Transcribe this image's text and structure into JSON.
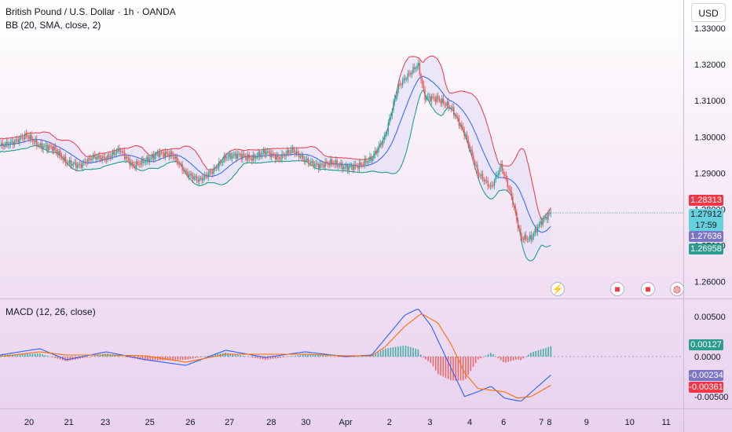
{
  "header": {
    "symbol_title": "British Pound / U.S. Dollar · 1h · OANDA",
    "indicator_bb": "BB (20, SMA, close, 2)",
    "indicator_macd": "MACD (12, 26, close)",
    "currency_button": "USD"
  },
  "price_tags": {
    "upper_band": "1.28313",
    "last_price": "1.27912",
    "countdown": "17:59",
    "basis": "1.27636",
    "lower_band": "1.26958",
    "macd_hist": "0.00127",
    "macd_line": "-0.00234",
    "signal_line": "-0.00361"
  },
  "colors": {
    "up": "#26a69a",
    "down": "#ef5350",
    "bb_upper": "#f23645",
    "bb_basis": "#2962ff",
    "bb_lower": "#089981",
    "band_fill": "#e7e2f7",
    "macd_line": "#2962ff",
    "signal_line": "#ff6d00",
    "tag_upper": "#f23645",
    "tag_last": "#66d1de",
    "tag_basis": "#7b75c6",
    "tag_lower": "#2a9d8f"
  },
  "icons": [
    "lightning-icon",
    "us-flag-event-icon",
    "us-flag-event-icon",
    "globe-event-icon"
  ],
  "chart_data": [
    {
      "type": "candlestick",
      "title": "British Pound / U.S. Dollar · 1h · OANDA",
      "indicator": "BB (20, SMA, close, 2)",
      "y_ticks": [
        "1.33000",
        "1.32000",
        "1.31000",
        "1.30000",
        "1.29000",
        "1.28000",
        "1.27000",
        "1.26000"
      ],
      "ylim": [
        1.2575,
        1.3335
      ],
      "x_ticks": [
        "20",
        "21",
        "23",
        "25",
        "26",
        "27",
        "28",
        "30",
        "Apr",
        "2",
        "3",
        "4",
        "6",
        "7",
        "8",
        "9",
        "10",
        "11"
      ],
      "price_path": [
        {
          "t": 0.0,
          "close": 1.2975
        },
        {
          "t": 0.02,
          "close": 1.2985
        },
        {
          "t": 0.04,
          "close": 1.3005
        },
        {
          "t": 0.06,
          "close": 1.2975
        },
        {
          "t": 0.08,
          "close": 1.297
        },
        {
          "t": 0.1,
          "close": 1.293
        },
        {
          "t": 0.12,
          "close": 1.292
        },
        {
          "t": 0.14,
          "close": 1.2945
        },
        {
          "t": 0.16,
          "close": 1.294
        },
        {
          "t": 0.18,
          "close": 1.2965
        },
        {
          "t": 0.2,
          "close": 1.292
        },
        {
          "t": 0.22,
          "close": 1.2935
        },
        {
          "t": 0.24,
          "close": 1.2955
        },
        {
          "t": 0.26,
          "close": 1.295
        },
        {
          "t": 0.28,
          "close": 1.29
        },
        {
          "t": 0.3,
          "close": 1.288
        },
        {
          "t": 0.32,
          "close": 1.2905
        },
        {
          "t": 0.34,
          "close": 1.2945
        },
        {
          "t": 0.36,
          "close": 1.295
        },
        {
          "t": 0.38,
          "close": 1.294
        },
        {
          "t": 0.4,
          "close": 1.296
        },
        {
          "t": 0.42,
          "close": 1.294
        },
        {
          "t": 0.44,
          "close": 1.2965
        },
        {
          "t": 0.46,
          "close": 1.2935
        },
        {
          "t": 0.48,
          "close": 1.292
        },
        {
          "t": 0.5,
          "close": 1.293
        },
        {
          "t": 0.52,
          "close": 1.2915
        },
        {
          "t": 0.54,
          "close": 1.292
        },
        {
          "t": 0.56,
          "close": 1.294
        },
        {
          "t": 0.58,
          "close": 1.3
        },
        {
          "t": 0.6,
          "close": 1.314
        },
        {
          "t": 0.62,
          "close": 1.318
        },
        {
          "t": 0.63,
          "close": 1.32
        },
        {
          "t": 0.64,
          "close": 1.311
        },
        {
          "t": 0.66,
          "close": 1.3105
        },
        {
          "t": 0.68,
          "close": 1.308
        },
        {
          "t": 0.7,
          "close": 1.301
        },
        {
          "t": 0.72,
          "close": 1.29
        },
        {
          "t": 0.74,
          "close": 1.286
        },
        {
          "t": 0.755,
          "close": 1.292
        },
        {
          "t": 0.77,
          "close": 1.284
        },
        {
          "t": 0.785,
          "close": 1.272
        },
        {
          "t": 0.8,
          "close": 1.272
        },
        {
          "t": 0.815,
          "close": 1.2765
        },
        {
          "t": 0.83,
          "close": 1.2791
        }
      ]
    },
    {
      "type": "line",
      "title": "MACD (12, 26, close)",
      "y_ticks": [
        "0.00500",
        "0.0000",
        "-0.00500"
      ],
      "ylim": [
        -0.006,
        0.0062
      ],
      "series": [
        {
          "points": [
            {
              "t": 0.0,
              "v": 0.0002
            },
            {
              "t": 0.06,
              "v": 0.001
            },
            {
              "t": 0.1,
              "v": -0.0004
            },
            {
              "t": 0.16,
              "v": 0.0006
            },
            {
              "t": 0.22,
              "v": -0.0004
            },
            {
              "t": 0.28,
              "v": -0.0011
            },
            {
              "t": 0.34,
              "v": 0.0008
            },
            {
              "t": 0.4,
              "v": -0.0001
            },
            {
              "t": 0.46,
              "v": 0.0006
            },
            {
              "t": 0.52,
              "v": 0.0
            },
            {
              "t": 0.56,
              "v": 0.0002
            },
            {
              "t": 0.58,
              "v": 0.0022
            },
            {
              "t": 0.61,
              "v": 0.0052
            },
            {
              "t": 0.63,
              "v": 0.006
            },
            {
              "t": 0.65,
              "v": 0.0038
            },
            {
              "t": 0.66,
              "v": 0.002
            },
            {
              "t": 0.68,
              "v": -0.0015
            },
            {
              "t": 0.7,
              "v": -0.005
            },
            {
              "t": 0.72,
              "v": -0.0044
            },
            {
              "t": 0.74,
              "v": -0.0037
            },
            {
              "t": 0.76,
              "v": -0.0052
            },
            {
              "t": 0.785,
              "v": -0.0056
            },
            {
              "t": 0.8,
              "v": -0.0045
            },
            {
              "t": 0.83,
              "v": -0.0023
            }
          ]
        },
        {
          "points": [
            {
              "t": 0.0,
              "v": 0.0
            },
            {
              "t": 0.06,
              "v": 0.0006
            },
            {
              "t": 0.1,
              "v": 0.0002
            },
            {
              "t": 0.16,
              "v": 0.0002
            },
            {
              "t": 0.22,
              "v": 0.0001
            },
            {
              "t": 0.28,
              "v": -0.0007
            },
            {
              "t": 0.34,
              "v": 0.0003
            },
            {
              "t": 0.4,
              "v": 0.0003
            },
            {
              "t": 0.46,
              "v": 0.0003
            },
            {
              "t": 0.52,
              "v": 0.0001
            },
            {
              "t": 0.56,
              "v": 0.0001
            },
            {
              "t": 0.58,
              "v": 0.0012
            },
            {
              "t": 0.61,
              "v": 0.0038
            },
            {
              "t": 0.635,
              "v": 0.0054
            },
            {
              "t": 0.66,
              "v": 0.0042
            },
            {
              "t": 0.68,
              "v": 0.0015
            },
            {
              "t": 0.7,
              "v": -0.002
            },
            {
              "t": 0.72,
              "v": -0.004
            },
            {
              "t": 0.74,
              "v": -0.0042
            },
            {
              "t": 0.76,
              "v": -0.0044
            },
            {
              "t": 0.78,
              "v": -0.0052
            },
            {
              "t": 0.8,
              "v": -0.005
            },
            {
              "t": 0.83,
              "v": -0.0036
            }
          ]
        }
      ],
      "histogram_last": 0.00127
    }
  ]
}
